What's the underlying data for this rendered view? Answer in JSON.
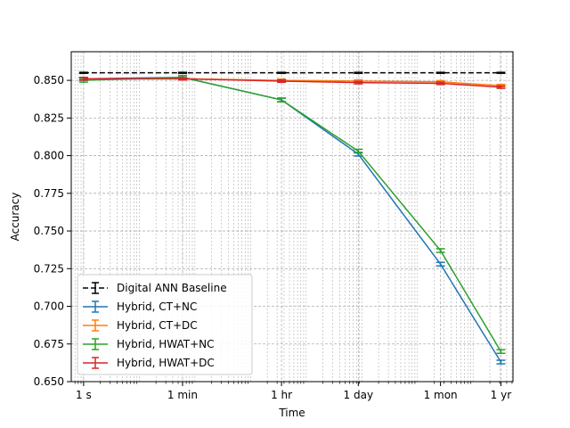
{
  "chart_data": {
    "type": "line",
    "title": "",
    "xlabel": "Time",
    "ylabel": "Accuracy",
    "x_scale": "log",
    "xlim_seconds": [
      0.6,
      52000000
    ],
    "ylim": [
      0.65,
      0.869
    ],
    "x_ticks": [
      {
        "label": "1 s",
        "seconds": 1
      },
      {
        "label": "1 min",
        "seconds": 60
      },
      {
        "label": "1 hr",
        "seconds": 3600
      },
      {
        "label": "1 day",
        "seconds": 86400
      },
      {
        "label": "1 mon",
        "seconds": 2592000
      },
      {
        "label": "1 yr",
        "seconds": 31536000
      }
    ],
    "y_ticks": [
      0.65,
      0.675,
      0.7,
      0.725,
      0.75,
      0.775,
      0.8,
      0.825,
      0.85
    ],
    "y_tick_labels": [
      "0.650",
      "0.675",
      "0.700",
      "0.725",
      "0.750",
      "0.775",
      "0.800",
      "0.825",
      "0.850"
    ],
    "grid": true,
    "legend_position": "lower-left",
    "x_seconds": [
      1,
      60,
      3600,
      86400,
      2592000,
      31536000
    ],
    "series": [
      {
        "name": "Digital ANN Baseline",
        "color": "#000000",
        "dashed": true,
        "values": [
          0.855,
          0.855,
          0.855,
          0.855,
          0.855,
          0.855
        ],
        "errors": [
          0.0003,
          0.0003,
          0.0003,
          0.0003,
          0.0003,
          0.0003
        ]
      },
      {
        "name": "Hybrid, CT+NC",
        "color": "#1f77b4",
        "dashed": false,
        "values": [
          0.851,
          0.852,
          0.837,
          0.801,
          0.728,
          0.663
        ],
        "errors": [
          0.001,
          0.001,
          0.0012,
          0.0012,
          0.0012,
          0.0012
        ]
      },
      {
        "name": "Hybrid, CT+DC",
        "color": "#ff7f0e",
        "dashed": false,
        "values": [
          0.851,
          0.851,
          0.85,
          0.8495,
          0.849,
          0.8465
        ],
        "errors": [
          0.0008,
          0.0008,
          0.0008,
          0.0008,
          0.0008,
          0.0008
        ]
      },
      {
        "name": "Hybrid, HWAT+NC",
        "color": "#2ca02c",
        "dashed": false,
        "values": [
          0.85,
          0.852,
          0.837,
          0.803,
          0.737,
          0.67
        ],
        "errors": [
          0.0012,
          0.0012,
          0.0012,
          0.0012,
          0.0012,
          0.0012
        ]
      },
      {
        "name": "Hybrid, HWAT+DC",
        "color": "#d62728",
        "dashed": false,
        "values": [
          0.851,
          0.851,
          0.8495,
          0.8485,
          0.848,
          0.8455
        ],
        "errors": [
          0.0008,
          0.0008,
          0.0008,
          0.0008,
          0.0008,
          0.0008
        ]
      }
    ]
  }
}
